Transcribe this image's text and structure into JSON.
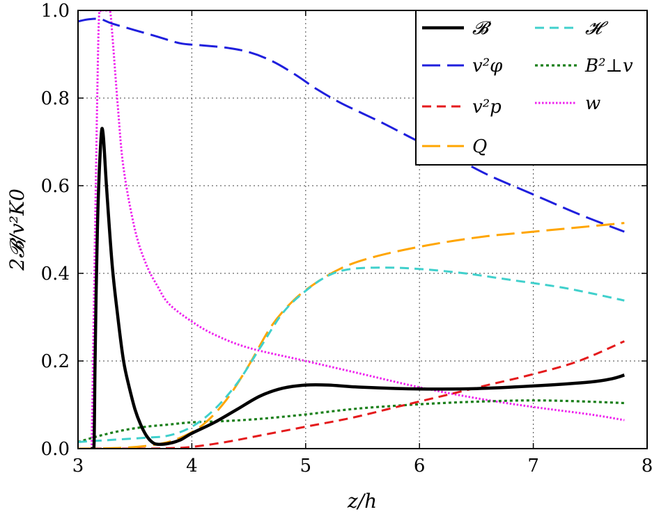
{
  "chart_data": {
    "type": "line",
    "xlabel": "z/h",
    "ylabel": "2𝓑/v²K0",
    "xlim": [
      3,
      8
    ],
    "ylim": [
      0,
      1.0
    ],
    "xticks": [
      "3",
      "4",
      "5",
      "6",
      "7",
      "8"
    ],
    "yticks": [
      "0.0",
      "0.2",
      "0.4",
      "0.6",
      "0.8",
      "1.0"
    ],
    "grid": true,
    "legend_position": "top-right",
    "series": [
      {
        "name": "𝓑",
        "color": "#000000",
        "style": "solid",
        "x": [
          3.12,
          3.14,
          3.15,
          3.17,
          3.2,
          3.22,
          3.25,
          3.3,
          3.35,
          3.4,
          3.45,
          3.5,
          3.55,
          3.6,
          3.65,
          3.7,
          3.8,
          3.9,
          4.0,
          4.2,
          4.4,
          4.6,
          4.8,
          5.0,
          5.2,
          5.5,
          6.0,
          6.5,
          7.0,
          7.5,
          7.7,
          7.8
        ],
        "y": [
          0.0,
          0.005,
          0.2,
          0.5,
          0.7,
          0.72,
          0.6,
          0.42,
          0.3,
          0.2,
          0.14,
          0.09,
          0.055,
          0.03,
          0.015,
          0.01,
          0.012,
          0.02,
          0.035,
          0.06,
          0.09,
          0.12,
          0.138,
          0.145,
          0.145,
          0.14,
          0.136,
          0.137,
          0.143,
          0.152,
          0.16,
          0.168
        ]
      },
      {
        "name": "v²φ",
        "color": "#1f1fdd",
        "style": "longdash",
        "x": [
          3.0,
          3.1,
          3.2,
          3.3,
          3.5,
          3.7,
          3.9,
          4.1,
          4.3,
          4.5,
          4.7,
          4.9,
          5.1,
          5.3,
          5.5,
          5.7,
          6.0,
          6.3,
          6.6,
          7.0,
          7.4,
          7.8
        ],
        "y": [
          0.975,
          0.98,
          0.98,
          0.97,
          0.955,
          0.94,
          0.925,
          0.92,
          0.915,
          0.905,
          0.885,
          0.855,
          0.82,
          0.79,
          0.765,
          0.74,
          0.7,
          0.665,
          0.625,
          0.58,
          0.535,
          0.495
        ]
      },
      {
        "name": "v²p",
        "color": "#e41a1c",
        "style": "dash",
        "x": [
          3.0,
          3.5,
          3.8,
          4.0,
          4.3,
          4.6,
          5.0,
          5.4,
          5.8,
          6.2,
          6.6,
          7.0,
          7.4,
          7.8
        ],
        "y": [
          0.0,
          0.0,
          0.001,
          0.004,
          0.015,
          0.03,
          0.05,
          0.07,
          0.095,
          0.12,
          0.145,
          0.17,
          0.2,
          0.245
        ]
      },
      {
        "name": "Q",
        "color": "#ffa500",
        "style": "longdash",
        "x": [
          3.0,
          3.4,
          3.7,
          3.9,
          4.1,
          4.3,
          4.5,
          4.7,
          4.9,
          5.1,
          5.3,
          5.5,
          5.8,
          6.2,
          6.6,
          7.0,
          7.4,
          7.8
        ],
        "y": [
          0.0,
          0.002,
          0.01,
          0.025,
          0.055,
          0.11,
          0.19,
          0.28,
          0.34,
          0.38,
          0.41,
          0.43,
          0.45,
          0.47,
          0.485,
          0.495,
          0.505,
          0.515
        ]
      },
      {
        "name": "𝓗",
        "color": "#40d0cc",
        "style": "dash",
        "x": [
          3.0,
          3.3,
          3.6,
          3.8,
          4.0,
          4.2,
          4.4,
          4.6,
          4.8,
          5.0,
          5.2,
          5.4,
          5.7,
          6.0,
          6.4,
          6.8,
          7.2,
          7.5,
          7.8
        ],
        "y": [
          0.015,
          0.02,
          0.025,
          0.03,
          0.05,
          0.09,
          0.15,
          0.23,
          0.31,
          0.36,
          0.395,
          0.41,
          0.413,
          0.41,
          0.4,
          0.385,
          0.37,
          0.355,
          0.338
        ]
      },
      {
        "name": "B²⊥v",
        "color": "#1a7f1a",
        "style": "dot",
        "x": [
          3.0,
          3.2,
          3.4,
          3.6,
          3.8,
          4.0,
          4.3,
          4.6,
          5.0,
          5.4,
          5.8,
          6.2,
          6.6,
          7.0,
          7.4,
          7.8
        ],
        "y": [
          0.015,
          0.03,
          0.042,
          0.05,
          0.055,
          0.06,
          0.063,
          0.068,
          0.078,
          0.09,
          0.098,
          0.104,
          0.108,
          0.11,
          0.108,
          0.104
        ]
      },
      {
        "name": "w",
        "color": "#ee22ee",
        "style": "fine-dot",
        "x": [
          3.12,
          3.15,
          3.18,
          3.2,
          3.22,
          3.25,
          3.28,
          3.3,
          3.35,
          3.4,
          3.5,
          3.6,
          3.7,
          3.8,
          4.0,
          4.2,
          4.5,
          5.0,
          5.5,
          6.0,
          6.5,
          7.0,
          7.5,
          7.8
        ],
        "y": [
          0.0,
          0.5,
          0.95,
          1.0,
          1.0,
          1.0,
          1.0,
          0.95,
          0.78,
          0.64,
          0.5,
          0.42,
          0.37,
          0.33,
          0.29,
          0.26,
          0.23,
          0.2,
          0.17,
          0.14,
          0.115,
          0.095,
          0.078,
          0.065
        ]
      }
    ]
  }
}
